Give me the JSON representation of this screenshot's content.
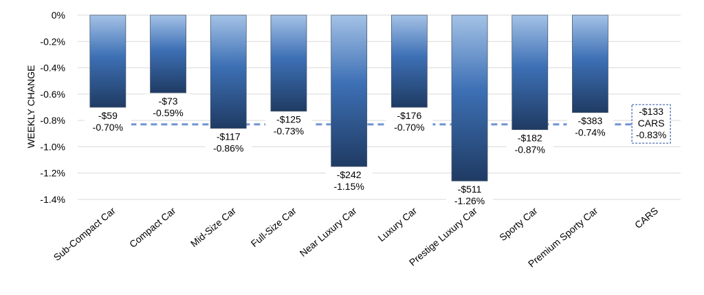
{
  "chart_data": {
    "type": "bar",
    "ylabel": "WEEKLY CHANGE",
    "ylim": [
      -1.4,
      0
    ],
    "yticks": [
      "0%",
      "-0.2%",
      "-0.4%",
      "-0.6%",
      "-0.8%",
      "-1.0%",
      "-1.2%",
      "-1.4%"
    ],
    "ytick_values": [
      0,
      -0.2,
      -0.4,
      -0.6,
      -0.8,
      -1.0,
      -1.2,
      -1.4
    ],
    "grid": true,
    "categories": [
      "Sub-Compact Car",
      "Compact Car",
      "Mid-Size Car",
      "Full-Size Car",
      "Near Luxury Car",
      "Luxury Car",
      "Prestige Luxury Car",
      "Sporty Car",
      "Premium Sporty Car",
      "CARS"
    ],
    "values": [
      -0.7,
      -0.59,
      -0.86,
      -0.73,
      -1.15,
      -0.7,
      -1.26,
      -0.87,
      -0.74,
      null
    ],
    "dollar_labels": [
      "-$59",
      "-$73",
      "-$117",
      "-$125",
      "-$242",
      "-$176",
      "-$511",
      "-$182",
      "-$383",
      "-$133"
    ],
    "percent_labels": [
      "-0.70%",
      "-0.59%",
      "-0.86%",
      "-0.73%",
      "-1.15%",
      "-0.70%",
      "-1.26%",
      "-0.87%",
      "-0.74%",
      "-0.83%"
    ],
    "average": {
      "value": -0.83,
      "category_label": "CARS",
      "dollar_label": "-$133",
      "percent_label": "-0.83%"
    },
    "colors": {
      "bar_top": "#a4c2e6",
      "bar_mid": "#3d70b5",
      "bar_bottom": "#1f3b63",
      "average_line": "#6f93d2",
      "grid": "#d9d9d9"
    }
  }
}
